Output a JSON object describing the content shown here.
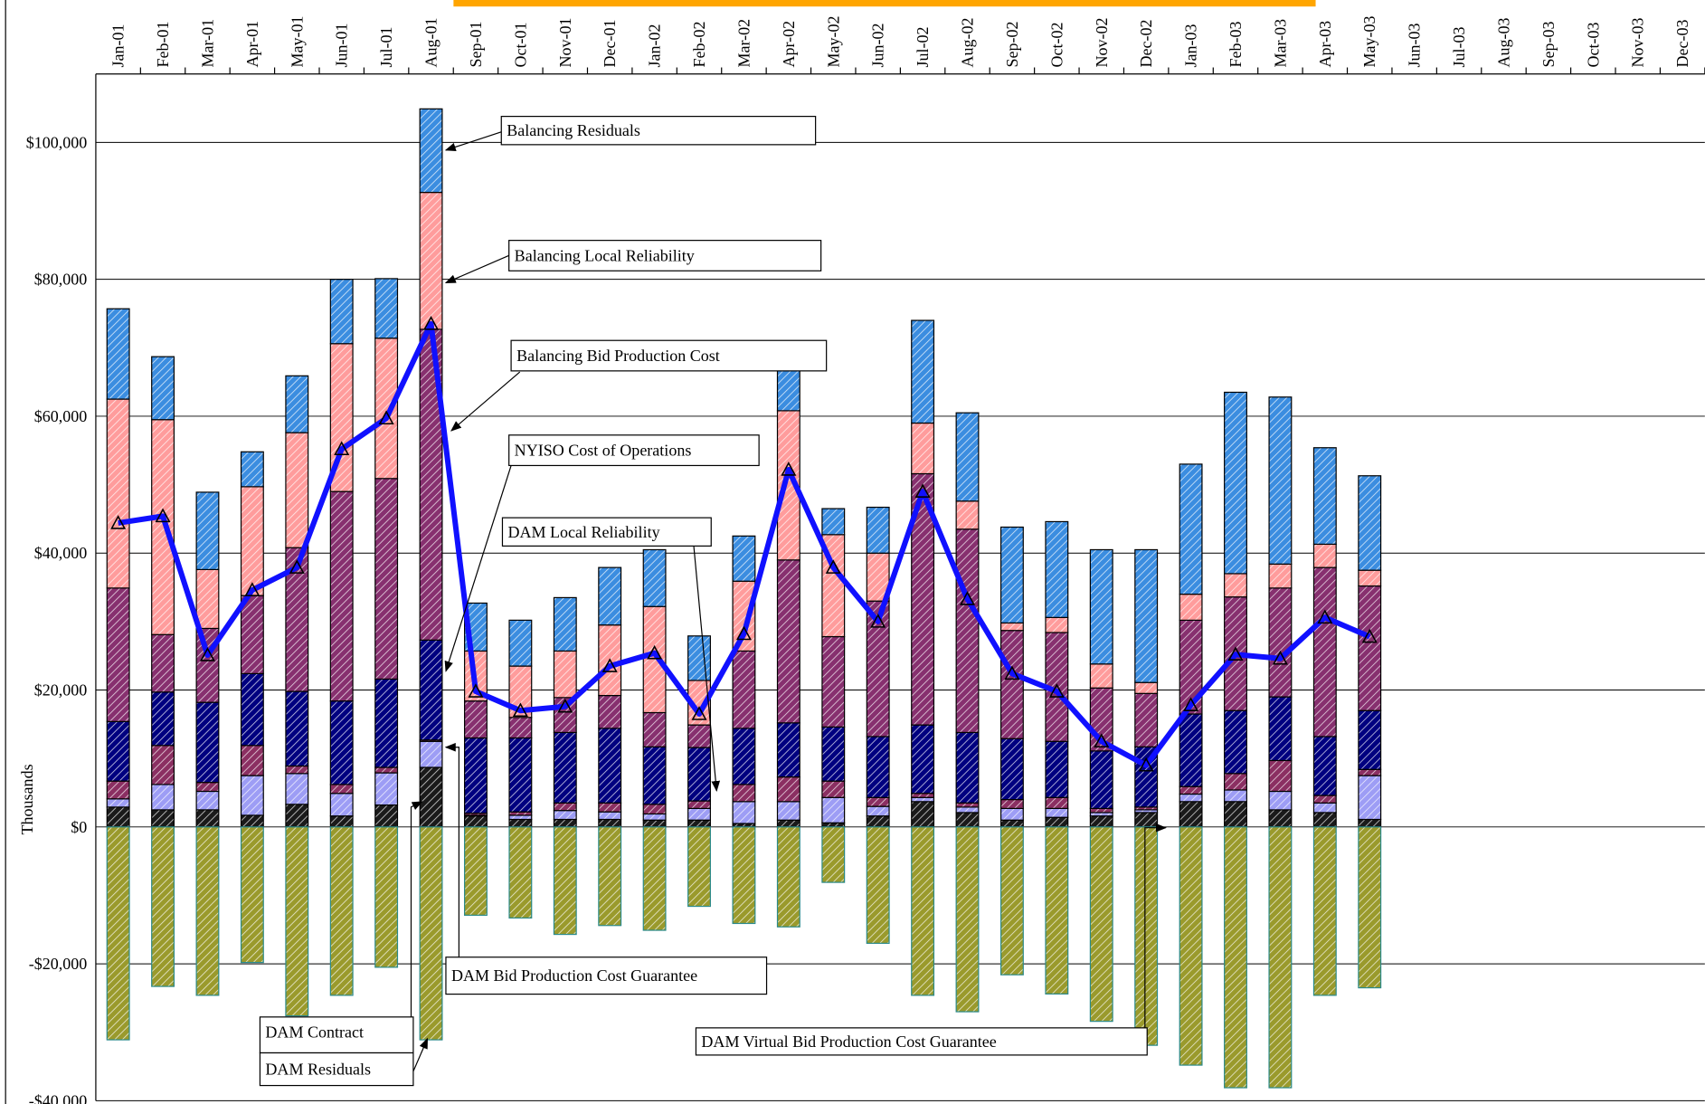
{
  "chart_data": {
    "type": "bar",
    "stacked": true,
    "y_axis_label": "Thousands",
    "categories": [
      "Jan-01",
      "Feb-01",
      "Mar-01",
      "Apr-01",
      "May-01",
      "Jun-01",
      "Jul-01",
      "Aug-01",
      "Sep-01",
      "Oct-01",
      "Nov-01",
      "Dec-01",
      "Jan-02",
      "Feb-02",
      "Mar-02",
      "Apr-02",
      "May-02",
      "Jun-02",
      "Jul-02",
      "Aug-02",
      "Sep-02",
      "Oct-02",
      "Nov-02",
      "Dec-02",
      "Jan-03",
      "Feb-03",
      "Mar-03",
      "Apr-03",
      "May-03",
      "Jun-03",
      "Jul-03",
      "Aug-03",
      "Sep-03",
      "Oct-03",
      "Nov-03",
      "Dec-03"
    ],
    "ylim": [
      -40000,
      110000
    ],
    "yticks": [
      {
        "value": -40000,
        "label": "-$40,000"
      },
      {
        "value": -20000,
        "label": "-$20,000"
      },
      {
        "value": 0,
        "label": "$0"
      },
      {
        "value": 20000,
        "label": "$20,000"
      },
      {
        "value": 40000,
        "label": "$40,000"
      },
      {
        "value": 60000,
        "label": "$60,000"
      },
      {
        "value": 80000,
        "label": "$80,000"
      },
      {
        "value": 100000,
        "label": "$100,000"
      }
    ],
    "grid": true,
    "series": [
      {
        "name": "DAM Contract",
        "color": "#1a1a1a",
        "values": [
          2900,
          2500,
          2500,
          1700,
          3300,
          1600,
          3200,
          8700,
          1600,
          1100,
          1100,
          1100,
          1000,
          1000,
          500,
          1000,
          600,
          1600,
          3700,
          2100,
          1000,
          1400,
          1600,
          2100,
          3700,
          3700,
          2500,
          2100,
          1100,
          null,
          null,
          null,
          null,
          null,
          null,
          null
        ]
      },
      {
        "name": "DAM Bid Production Cost Guarantee",
        "color": "#9d9df5",
        "values": [
          1200,
          3700,
          2700,
          5800,
          4500,
          3300,
          4700,
          3800,
          100,
          600,
          1300,
          1100,
          900,
          1700,
          3200,
          2700,
          3700,
          1400,
          600,
          800,
          1700,
          1300,
          500,
          400,
          1100,
          1700,
          2700,
          1400,
          6400,
          null,
          null,
          null,
          null,
          null,
          null,
          null
        ]
      },
      {
        "name": "DAM Local Reliability",
        "color": "#8b2f62",
        "values": [
          2600,
          5700,
          1300,
          4400,
          1100,
          1300,
          800,
          200,
          300,
          500,
          1100,
          1300,
          1400,
          1100,
          2500,
          3600,
          2400,
          1300,
          600,
          600,
          1300,
          1600,
          600,
          400,
          1100,
          2400,
          4500,
          1100,
          900,
          null,
          null,
          null,
          null,
          null,
          null,
          null
        ]
      },
      {
        "name": "NYISO Cost of Operations",
        "color": "#000080",
        "values": [
          8700,
          7800,
          11700,
          10500,
          10900,
          12200,
          12900,
          14600,
          11000,
          10800,
          10300,
          10900,
          8400,
          7800,
          8200,
          7900,
          7900,
          8900,
          10000,
          10300,
          8900,
          8200,
          8400,
          8800,
          10600,
          9200,
          9300,
          8600,
          8600,
          null,
          null,
          null,
          null,
          null,
          null,
          null
        ]
      },
      {
        "name": "Balancing Bid Production Cost",
        "color": "#87306f",
        "values": [
          19500,
          8400,
          10800,
          11400,
          21000,
          30600,
          29300,
          45400,
          5400,
          3000,
          5100,
          4800,
          5000,
          3300,
          11300,
          23800,
          13200,
          19800,
          36700,
          29700,
          15800,
          15900,
          9200,
          7800,
          13700,
          16600,
          15900,
          24700,
          18200,
          null,
          null,
          null,
          null,
          null,
          null,
          null
        ]
      },
      {
        "name": "Balancing Local Reliability",
        "color": "#ff9c9c",
        "values": [
          27600,
          31400,
          8600,
          15900,
          16800,
          21600,
          20500,
          20000,
          7300,
          7500,
          6800,
          10300,
          15500,
          6500,
          10200,
          21800,
          14900,
          7000,
          7400,
          4100,
          1100,
          2200,
          3500,
          1600,
          3800,
          3400,
          3500,
          3400,
          2300,
          null,
          null,
          null,
          null,
          null,
          null,
          null
        ]
      },
      {
        "name": "Balancing Residuals",
        "color": "#3b8de0",
        "values": [
          13200,
          9200,
          11300,
          5100,
          8300,
          9400,
          8700,
          12200,
          7000,
          6700,
          7800,
          8400,
          8300,
          6500,
          6600,
          6200,
          3800,
          6700,
          15000,
          12900,
          14000,
          14000,
          16700,
          19400,
          19000,
          26500,
          24400,
          14100,
          13800,
          null,
          null,
          null,
          null,
          null,
          null,
          null
        ]
      },
      {
        "name": "DAM Residuals",
        "color": "#9a9a2c",
        "values": [
          -31100,
          -23300,
          -24600,
          -19800,
          -27600,
          -24600,
          -20500,
          -31100,
          -12900,
          -13300,
          -15700,
          -14400,
          -15100,
          -11600,
          -14100,
          -14600,
          -8100,
          -17000,
          -24600,
          -27000,
          -21600,
          -24400,
          -28400,
          -31900,
          -34800,
          -38100,
          -38100,
          -24600,
          -23500,
          null,
          null,
          null,
          null,
          null,
          null,
          null
        ]
      }
    ],
    "line": {
      "color": "#1010ff",
      "values": [
        44400,
        45400,
        25100,
        34600,
        37900,
        55200,
        59700,
        73500,
        19800,
        17000,
        17600,
        23500,
        25400,
        16500,
        28200,
        52200,
        37900,
        30000,
        49000,
        33300,
        22400,
        19800,
        12500,
        9000,
        17800,
        25200,
        24600,
        30600,
        27800,
        null,
        null,
        null,
        null,
        null,
        null,
        null
      ]
    },
    "annotations": [
      {
        "text": "DAM Virtual Bid Production Cost Guarantee"
      }
    ]
  }
}
